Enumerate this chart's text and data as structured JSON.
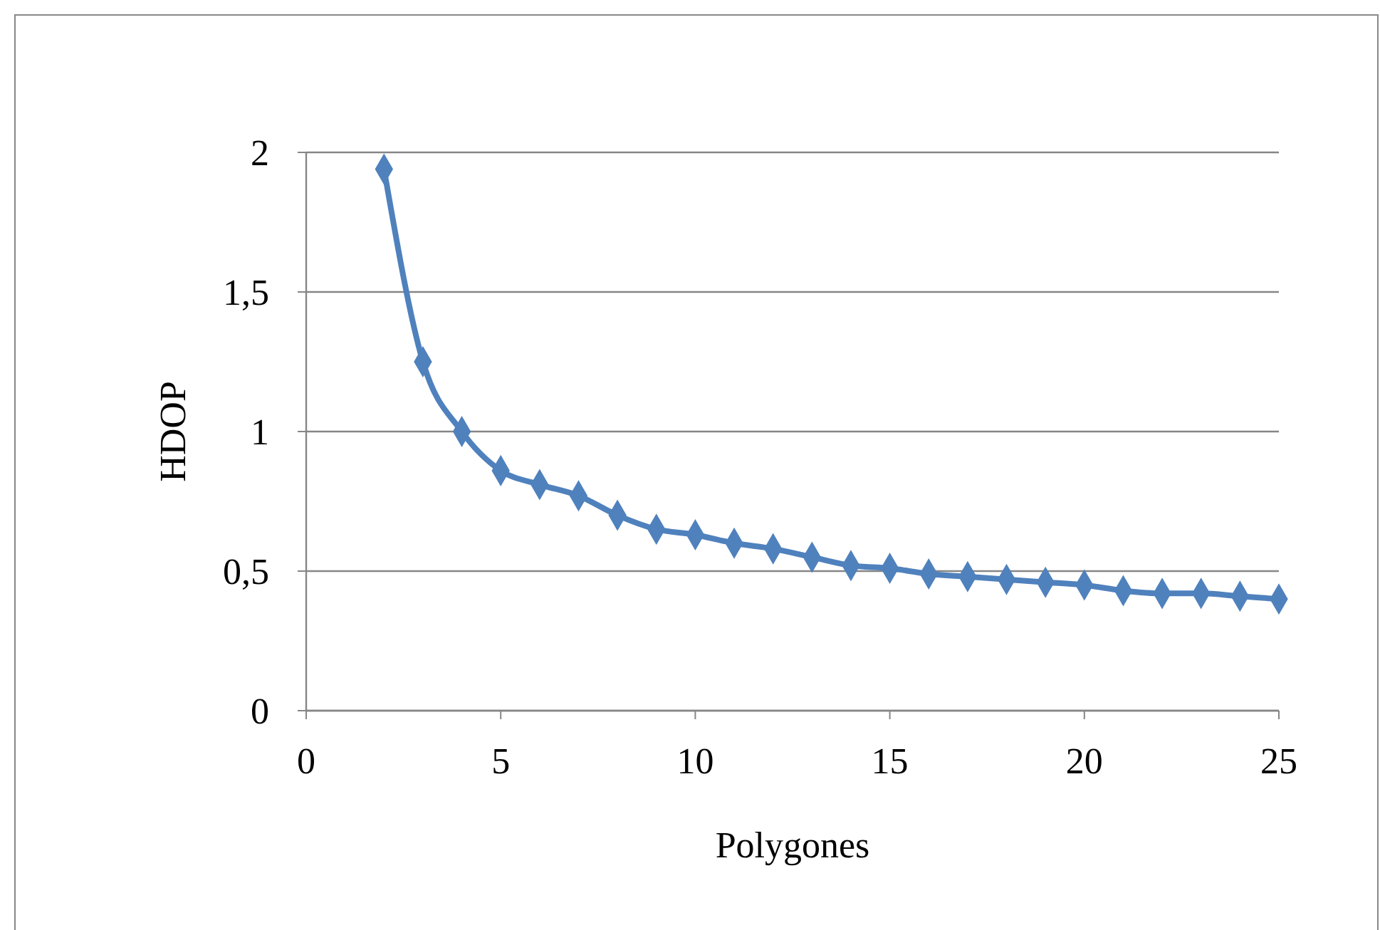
{
  "chart_data": {
    "type": "line",
    "xlabel": "Polygones",
    "ylabel": "HDOP",
    "x": [
      2,
      3,
      4,
      5,
      6,
      7,
      8,
      9,
      10,
      11,
      12,
      13,
      14,
      15,
      16,
      17,
      18,
      19,
      20,
      21,
      22,
      23,
      24,
      25
    ],
    "series": [
      {
        "color": "#4f81bd",
        "values": [
          1.94,
          1.25,
          1.0,
          0.86,
          0.81,
          0.77,
          0.7,
          0.65,
          0.63,
          0.6,
          0.58,
          0.55,
          0.52,
          0.51,
          0.49,
          0.48,
          0.47,
          0.46,
          0.45,
          0.43,
          0.42,
          0.42,
          0.41,
          0.4
        ]
      }
    ],
    "xlim": [
      0,
      25
    ],
    "xticks": [
      0,
      5,
      10,
      15,
      20,
      25
    ],
    "ylim": [
      0,
      2
    ],
    "yticks": [
      0,
      {
        "value": 0.5,
        "label": "0,5"
      },
      1,
      {
        "value": 1.5,
        "label": "1,5"
      },
      2
    ],
    "grid": "y",
    "marker": "diamond",
    "line_style": "solid"
  }
}
